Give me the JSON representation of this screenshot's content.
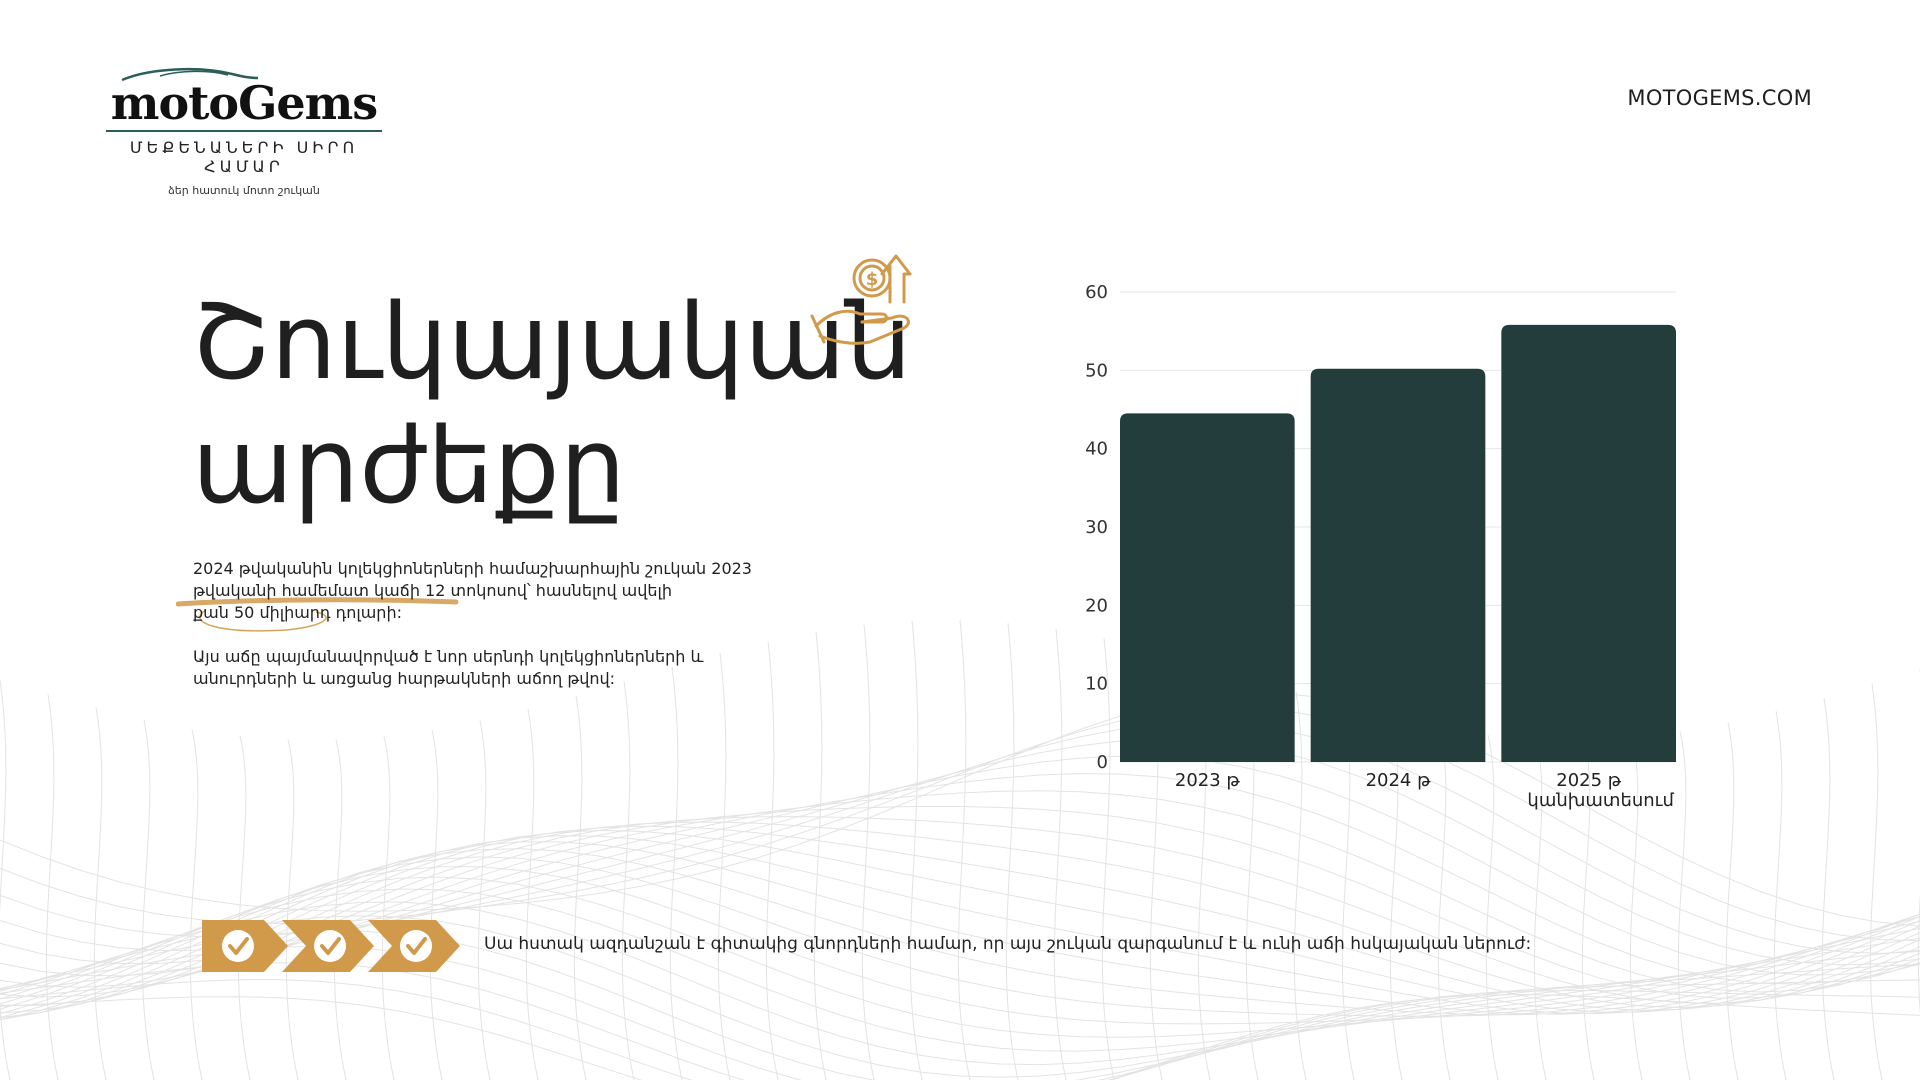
{
  "header": {
    "brand": "motoGems",
    "tagline": "ՄԵՔԵՆԱՆԵՐԻ ՍԻՐՈ ՀԱՄԱՐ",
    "subtagline": "ձեր հատուկ մոտո շուկան",
    "site_url": "MOTOGEMS.COM"
  },
  "title": {
    "line1": "Շուկայական",
    "line2": "արժեքը"
  },
  "icons": {
    "title_icon": "hand-money-growth-icon",
    "check_icon": "check-circle-icon"
  },
  "paragraphs": {
    "p1_line1": "2024 թվականին կոլեկցիոներների համաշխարհային շուկան 2023",
    "p1_line2": "թվականի համեմատ կաճի 12 տոկոսով՝ հասնելով ավելի",
    "p1_line3": "քան 50 միլիարդ դոլարի:",
    "p2_line1": "Այս աճը պայմանավորված է նոր սերնդի կոլեկցիոներների և",
    "p2_line2": "անուրդների և առցանց հարթակների աճող թվով:"
  },
  "footer": {
    "text": "Սա հստակ ազդանշան է գիտակից գնորդների համար, որ այս շուկան զարգանում է և ունի աճի հսկայական ներուժ:",
    "check_count": 3
  },
  "colors": {
    "bar": "#233d3c",
    "accent_gold": "#d19a4b",
    "grid": "#e6e6e6",
    "text": "#1f1f1f",
    "logo_green": "#2a5e57"
  },
  "chart_data": {
    "type": "bar",
    "categories": [
      [
        "2023 թ"
      ],
      [
        "2024 թ"
      ],
      [
        "2025 թ",
        "կանխատեսում"
      ]
    ],
    "values": [
      44.5,
      50.2,
      55.8
    ],
    "ylim": [
      0,
      60
    ],
    "yticks": [
      0,
      10,
      20,
      30,
      40,
      50,
      60
    ],
    "grid": true,
    "title": "",
    "xlabel": "",
    "ylabel": ""
  }
}
